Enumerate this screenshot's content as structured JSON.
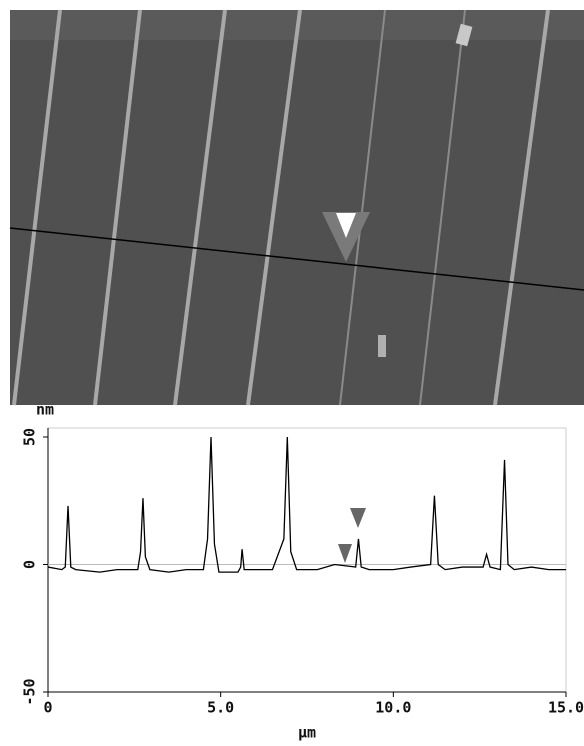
{
  "chart_data": {
    "type": "line",
    "x_label": "μm",
    "y_label": "nm",
    "x": [
      0,
      0.4,
      0.5,
      0.58,
      0.66,
      0.8,
      1.5,
      2.0,
      2.6,
      2.68,
      2.75,
      2.82,
      2.95,
      3.5,
      4.0,
      4.5,
      4.62,
      4.72,
      4.82,
      4.95,
      5.5,
      5.58,
      5.62,
      5.68,
      6.0,
      6.5,
      6.83,
      6.93,
      7.03,
      7.2,
      7.8,
      8.3,
      8.91,
      8.99,
      9.07,
      9.3,
      10.0,
      10.5,
      11.08,
      11.19,
      11.3,
      11.5,
      12.0,
      12.6,
      12.7,
      12.8,
      13.1,
      13.22,
      13.32,
      13.5,
      14.0,
      14.5,
      15.0
    ],
    "series": [
      {
        "color": "#000000",
        "values": [
          -1,
          -2,
          -1,
          23,
          -1,
          -2,
          -3,
          -2,
          -2,
          5,
          26,
          3,
          -2,
          -3,
          -2,
          -2,
          10,
          50,
          8,
          -3,
          -3,
          -1,
          6,
          -2,
          -2,
          -2,
          10,
          50,
          5,
          -2,
          -2,
          0,
          -1,
          10,
          -1,
          -2,
          -2,
          -1,
          0,
          27,
          0,
          -2,
          -1,
          -1,
          4,
          -1,
          -2,
          41,
          0,
          -2,
          -1,
          -2,
          -2
        ]
      }
    ],
    "xlim": [
      0,
      15
    ],
    "xticks": [
      0,
      {
        "value": 5,
        "label": "5.0"
      },
      {
        "value": 10,
        "label": "10.0"
      },
      {
        "value": 15,
        "label": "15.0"
      }
    ],
    "ylim": [
      -50,
      50
    ],
    "yticks": [
      50,
      0,
      -50
    ]
  }
}
